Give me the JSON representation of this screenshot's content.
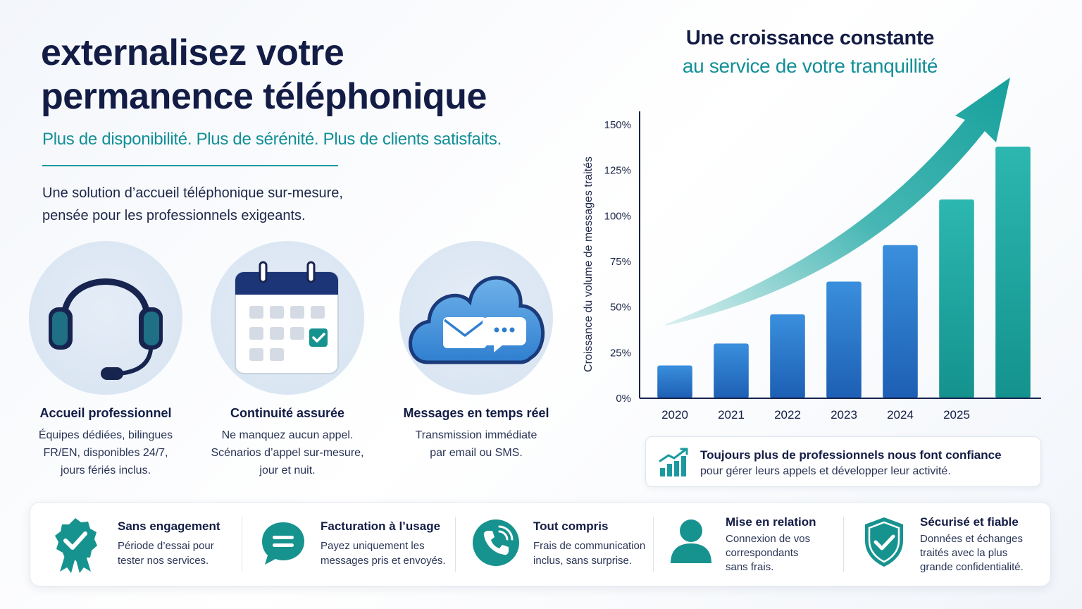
{
  "header": {
    "title_line1": "externalisez votre",
    "title_line2": "permanence téléphonique",
    "subtitle": "Plus de disponibilité. Plus de sérénité. Plus de clients satisfaits.",
    "intro_line1": "Une solution d’accueil téléphonique sur-mesure,",
    "intro_line2": "pensée pour les professionnels exigeants."
  },
  "features": [
    {
      "icon": "headset-icon",
      "title": "Accueil professionnel",
      "desc_lines": [
        "Équipes dédiées, bilingues",
        "FR/EN, disponibles 24/7,",
        "jours fériés inclus."
      ]
    },
    {
      "icon": "calendar-icon",
      "title": "Continuité assurée",
      "desc_lines": [
        "Ne manquez aucun appel.",
        "Scénarios d’appel sur-mesure,",
        "jour et nuit."
      ]
    },
    {
      "icon": "cloud-message-icon",
      "title": "Messages en temps réel",
      "desc_lines": [
        "Transmission immédiate",
        "par email ou SMS."
      ]
    }
  ],
  "chart_data": {
    "type": "bar",
    "title": "Une croissance constante",
    "subtitle": "au service de votre tranquillité",
    "ylabel": "Croissance du volume de messages traités",
    "xlabel": "",
    "categories": [
      "2020",
      "2021",
      "2022",
      "2023",
      "2024",
      "2025",
      ""
    ],
    "values": [
      18,
      30,
      46,
      64,
      84,
      109,
      138
    ],
    "ylim": [
      0,
      150
    ],
    "yticks": [
      "0%",
      "25%",
      "50%",
      "75%",
      "100%",
      "125%",
      "150%"
    ],
    "grid": false,
    "trend_arrow": true,
    "colors": {
      "blue_top": "#3a8fdd",
      "blue_bottom": "#1d5fb4",
      "teal_top": "#2cb7b0",
      "teal_bottom": "#14928e",
      "arrow": "#1aa6a2"
    }
  },
  "trust": {
    "icon": "growth-chart-icon",
    "title": "Toujours plus de professionnels nous font confiance",
    "text": "pour gérer leurs appels et développer leur activité."
  },
  "benefits": [
    {
      "icon": "badge-check-icon",
      "title": "Sans engagement",
      "desc_lines": [
        "Période d’essai pour",
        "tester nos services."
      ]
    },
    {
      "icon": "chat-bubble-icon",
      "title": "Facturation à l’usage",
      "desc_lines": [
        "Payez uniquement les",
        "messages pris et envoyés."
      ]
    },
    {
      "icon": "phone-call-icon",
      "title": "Tout compris",
      "desc_lines": [
        "Frais de communication",
        "inclus, sans surprise."
      ]
    },
    {
      "icon": "user-icon",
      "title": "Mise en relation",
      "desc_lines": [
        "Connexion de vos",
        "correspondants",
        "sans frais."
      ]
    },
    {
      "icon": "shield-check-icon",
      "title": "Sécurisé et fiable",
      "desc_lines": [
        "Données et échanges",
        "traités avec la plus",
        "grande confidentialité."
      ]
    }
  ],
  "colors": {
    "navy": "#131c45",
    "teal": "#128f96",
    "accent_teal": "#1a9a9e",
    "icon_navy": "#1b2c5e"
  }
}
